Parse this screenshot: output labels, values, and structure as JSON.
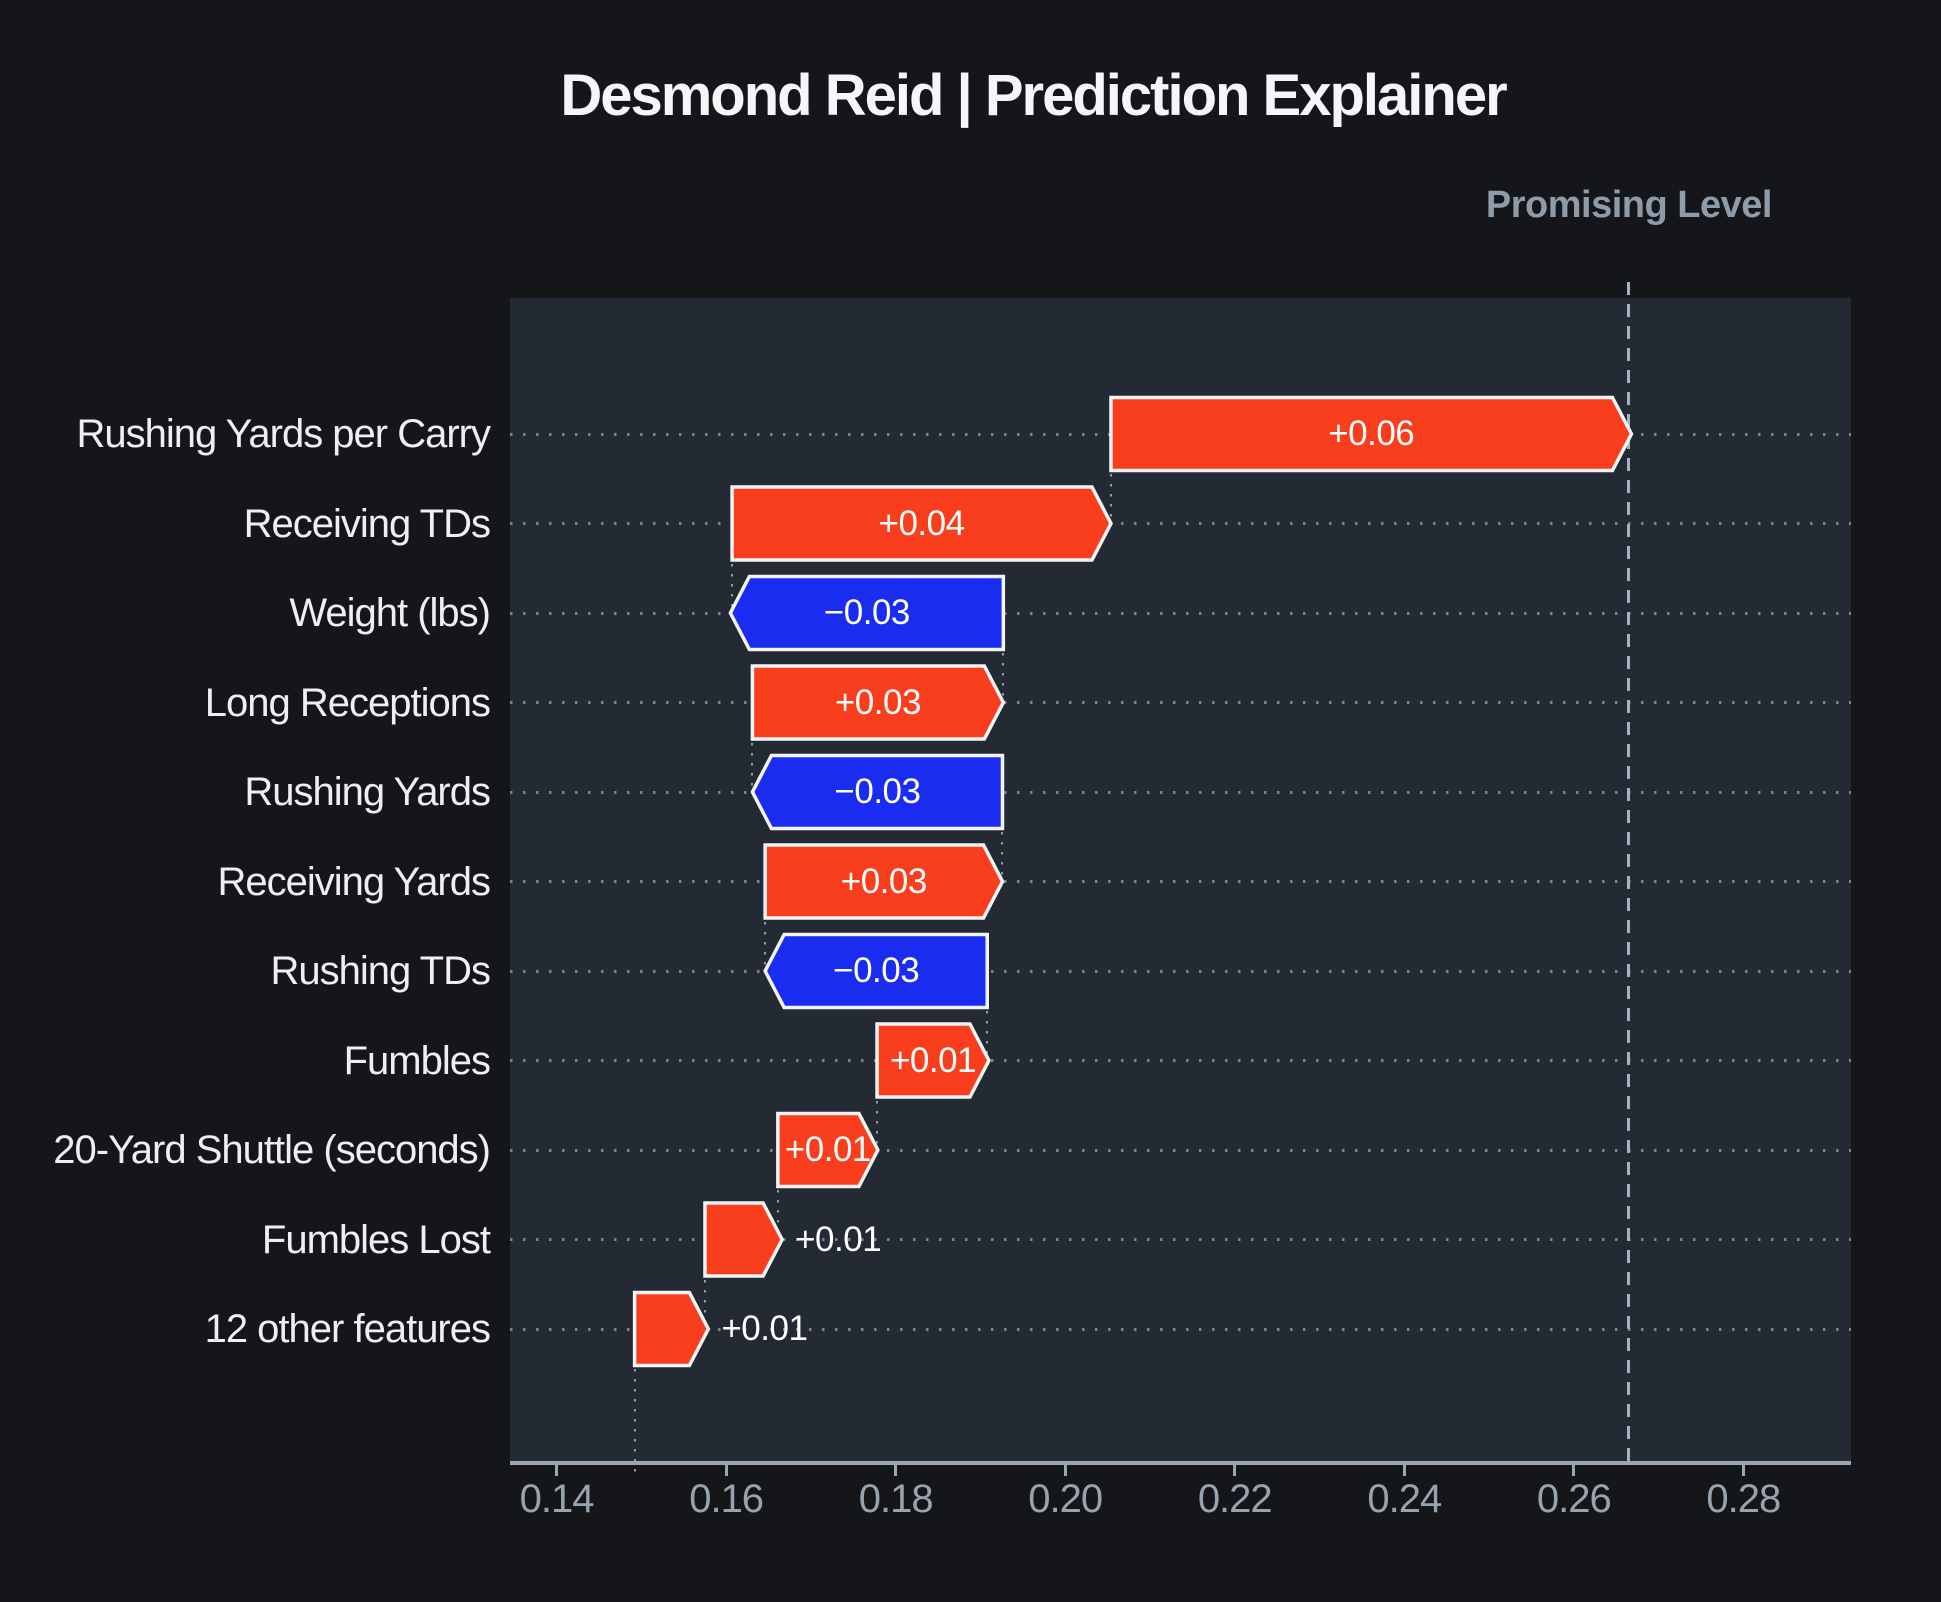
{
  "title": "Desmond Reid | Prediction Explainer",
  "reference_line": {
    "label": "Promising Level",
    "value": 0.2665
  },
  "colors": {
    "positive_bar": "#F93E1E",
    "negative_bar": "#1A2CEF",
    "bar_outline": "#F2F4F5",
    "plot_background": "#242A33",
    "page_background": "#15161A",
    "axis": "#9AA6B2",
    "tick_label": "#97A3AF",
    "row_label": "#EDEFF1",
    "value_label": "#FFFFFF",
    "reference_line": "#A6B2BE",
    "title": "#F5F6F7"
  },
  "chart_data": {
    "type": "bar",
    "subtype": "waterfall-prediction-explainer",
    "title": "Desmond Reid | Prediction Explainer",
    "xlabel": "",
    "ylabel": "",
    "grid": "dotted-horizontal",
    "legend": "none",
    "base_value": 0.149,
    "final_value": 0.2665,
    "x_axis": {
      "range": [
        0.1345,
        0.2927
      ],
      "ticks": [
        0.14,
        0.16,
        0.18,
        0.2,
        0.22,
        0.24,
        0.26,
        0.28
      ],
      "tick_labels": [
        "0.14",
        "0.16",
        "0.18",
        "0.20",
        "0.22",
        "0.24",
        "0.26",
        "0.28"
      ]
    },
    "features": [
      {
        "label": "Rushing Yards per Carry",
        "value_label": "+0.06",
        "value": 0.06,
        "start": 0.2054,
        "end": 0.2668
      },
      {
        "label": "Receiving TDs",
        "value_label": "+0.04",
        "value": 0.04,
        "start": 0.1607,
        "end": 0.2054
      },
      {
        "label": "Weight (lbs)",
        "value_label": "−0.03",
        "value": -0.03,
        "start": 0.1927,
        "end": 0.1605
      },
      {
        "label": "Long Receptions",
        "value_label": "+0.03",
        "value": 0.03,
        "start": 0.1631,
        "end": 0.1927
      },
      {
        "label": "Rushing Yards",
        "value_label": "−0.03",
        "value": -0.03,
        "start": 0.1926,
        "end": 0.1631
      },
      {
        "label": "Receiving Yards",
        "value_label": "+0.03",
        "value": 0.03,
        "start": 0.1646,
        "end": 0.1926
      },
      {
        "label": "Rushing TDs",
        "value_label": "−0.03",
        "value": -0.03,
        "start": 0.1908,
        "end": 0.1646
      },
      {
        "label": "Fumbles",
        "value_label": "+0.01",
        "value": 0.01,
        "start": 0.1778,
        "end": 0.191
      },
      {
        "label": "20-Yard Shuttle (seconds)",
        "value_label": "+0.01",
        "value": 0.01,
        "start": 0.1661,
        "end": 0.1779
      },
      {
        "label": "Fumbles Lost",
        "value_label": "+0.01",
        "value": 0.01,
        "start": 0.1575,
        "end": 0.1666
      },
      {
        "label": "12 other features",
        "value_label": "+0.01",
        "value": 0.01,
        "start": 0.1492,
        "end": 0.1579
      }
    ]
  }
}
